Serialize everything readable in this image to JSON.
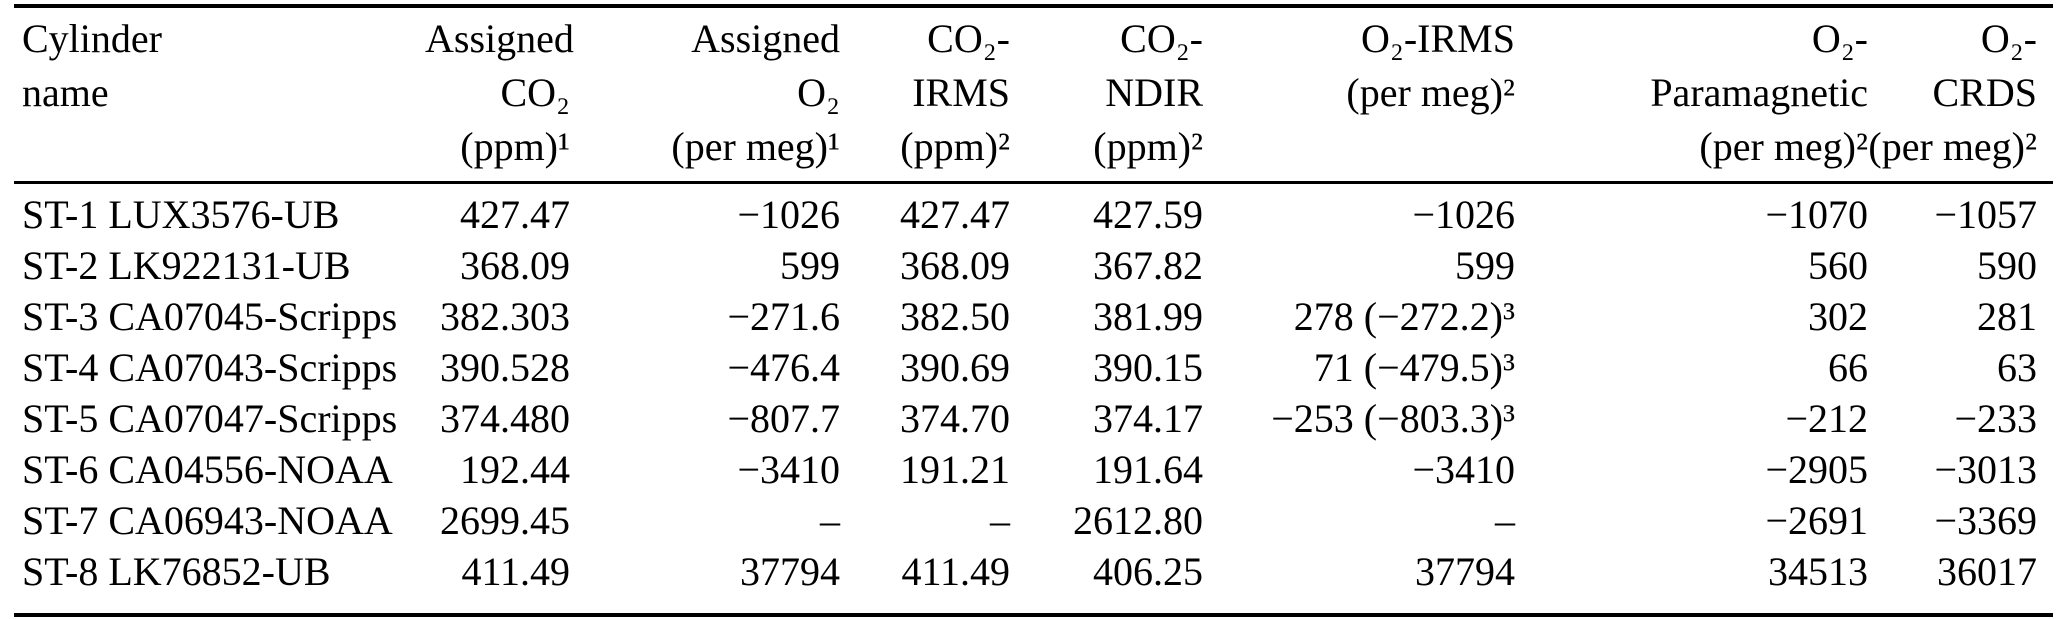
{
  "colors": {
    "text": "#000000",
    "background": "#ffffff",
    "rule": "#000000"
  },
  "table": {
    "columns": [
      {
        "id": "cylinder-name",
        "align": "left",
        "lines": [
          "Cylinder",
          "name"
        ]
      },
      {
        "id": "assigned-co2",
        "align": "right",
        "lines": [
          "Assigned",
          "CO₂",
          "(ppm)¹"
        ]
      },
      {
        "id": "assigned-o2",
        "align": "right",
        "lines": [
          "Assigned",
          "O₂",
          "(per meg)¹"
        ]
      },
      {
        "id": "co2-irms",
        "align": "right",
        "lines": [
          "CO₂-",
          "IRMS",
          "(ppm)²"
        ]
      },
      {
        "id": "co2-ndir",
        "align": "right",
        "lines": [
          "CO₂-",
          "NDIR",
          "(ppm)²"
        ]
      },
      {
        "id": "o2-irms",
        "align": "right",
        "lines": [
          "O₂-IRMS",
          "(per meg)²"
        ]
      },
      {
        "id": "o2-paramagnetic",
        "align": "right",
        "lines": [
          "O₂-",
          "Paramagnetic",
          "(per meg)²"
        ]
      },
      {
        "id": "o2-crds",
        "align": "right",
        "lines": [
          "O₂-",
          "CRDS",
          "(per meg)²"
        ]
      }
    ],
    "rows": [
      [
        "ST-1 LUX3576-UB",
        "427.47",
        "−1026",
        "427.47",
        "427.59",
        "−1026",
        "−1070",
        "−1057"
      ],
      [
        "ST-2 LK922131-UB",
        "368.09",
        "599",
        "368.09",
        "367.82",
        "599",
        "560",
        "590"
      ],
      [
        "ST-3 CA07045-Scripps",
        "382.303",
        "−271.6",
        "382.50",
        "381.99",
        "278 (−272.2)³",
        "302",
        "281"
      ],
      [
        "ST-4 CA07043-Scripps",
        "390.528",
        "−476.4",
        "390.69",
        "390.15",
        "71 (−479.5)³",
        "66",
        "63"
      ],
      [
        "ST-5 CA07047-Scripps",
        "374.480",
        "−807.7",
        "374.70",
        "374.17",
        "−253 (−803.3)³",
        "−212",
        "−233"
      ],
      [
        "ST-6 CA04556-NOAA",
        "192.44",
        "−3410",
        "191.21",
        "191.64",
        "−3410",
        "−2905",
        "−3013"
      ],
      [
        "ST-7 CA06943-NOAA",
        "2699.45",
        "–",
        "–",
        "2612.80",
        "–",
        "−2691",
        "−3369"
      ],
      [
        "ST-8 LK76852-UB",
        "411.49",
        "37794",
        "411.49",
        "406.25",
        "37794",
        "34513",
        "36017"
      ]
    ]
  }
}
